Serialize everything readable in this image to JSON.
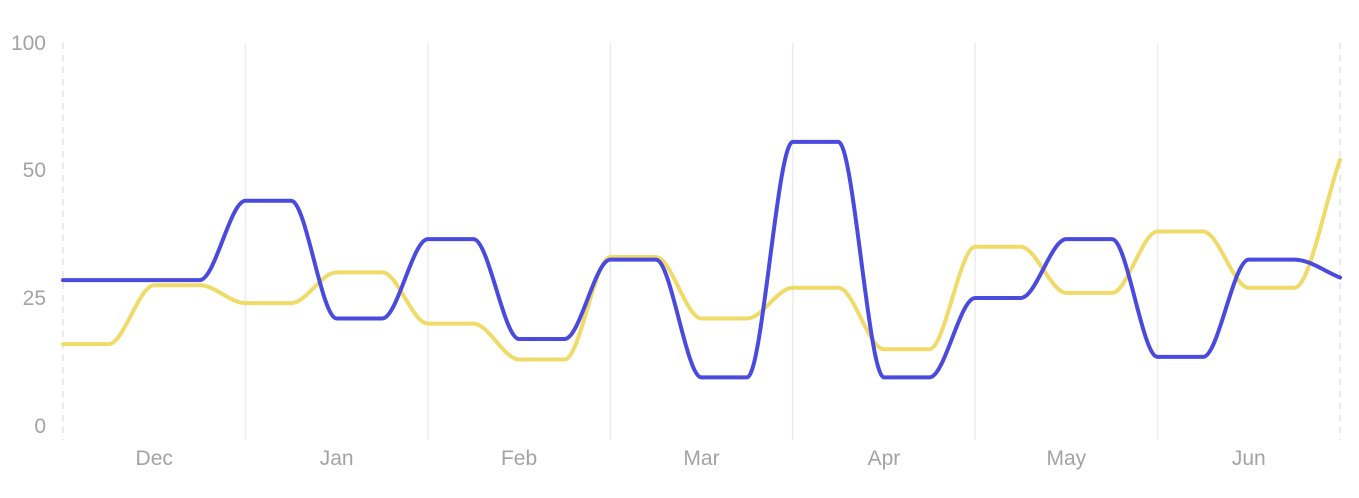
{
  "chart_data": {
    "type": "line",
    "title": "",
    "xlabel": "",
    "ylabel": "",
    "ylim": [
      0,
      100
    ],
    "y_tick_values": [
      0,
      25,
      50,
      100
    ],
    "y_tick_labels": [
      "0",
      "25",
      "50",
      "100"
    ],
    "categories": [
      "Dec",
      "Jan",
      "Feb",
      "Mar",
      "Apr",
      "May",
      "Jun"
    ],
    "grid": "vertical",
    "legend": "none",
    "x": [
      0,
      0.5,
      1,
      1.5,
      2,
      2.5,
      3,
      3.5,
      4,
      4.5,
      5,
      5.5,
      6,
      6.5,
      7,
      7.5,
      8,
      8.5,
      9,
      9.5,
      10,
      10.5,
      11,
      11.5,
      12,
      12.5,
      13,
      13.5,
      14
    ],
    "series": [
      {
        "color": "#4a4ade",
        "values": [
          28.5,
          28.5,
          28.5,
          28.5,
          44,
          44,
          21,
          21,
          36.5,
          36.5,
          17,
          17,
          32.5,
          32.5,
          9.5,
          9.5,
          55.5,
          55.5,
          9.5,
          9.5,
          25,
          25,
          36.5,
          36.5,
          13.5,
          13.5,
          32.5,
          32.5,
          29
        ]
      },
      {
        "color": "#f0da68",
        "values": [
          16,
          16,
          27.5,
          27.5,
          24,
          24,
          30,
          30,
          20,
          20,
          13,
          13,
          33,
          33,
          21,
          21,
          27,
          27,
          15,
          15,
          35,
          35,
          26,
          26,
          38,
          38,
          27,
          27,
          52
        ]
      }
    ]
  }
}
